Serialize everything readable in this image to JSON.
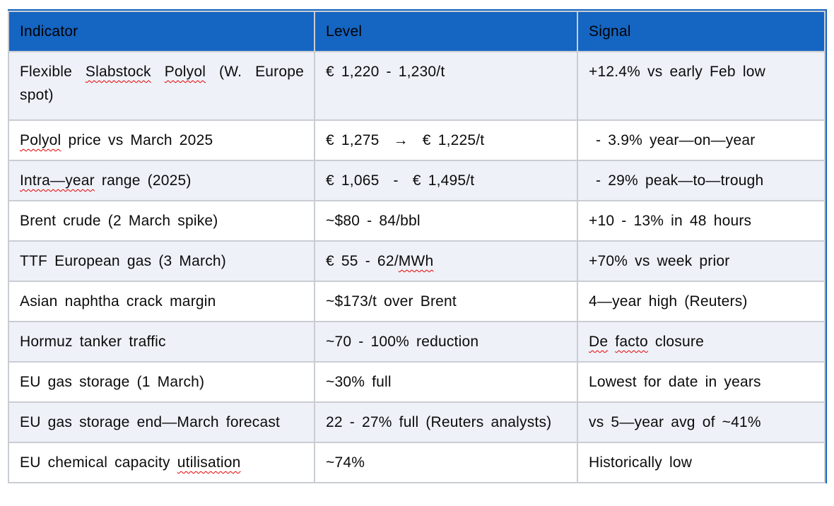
{
  "colors": {
    "header_bg": "#1565C2",
    "banded_row_bg": "#EEF1F8",
    "plain_row_bg": "#FFFFFF",
    "grid_border": "#C9CDD3",
    "header_text": "#000000",
    "body_text": "#0B0B0B",
    "spellcheck_squiggle": "#E60000"
  },
  "table": {
    "columns": [
      {
        "label": "Indicator"
      },
      {
        "label": "Level"
      },
      {
        "label": "Signal"
      }
    ],
    "rows": [
      {
        "indicator": {
          "text": "Flexible Slabstock Polyol (W. Europe spot)",
          "misspelled": [
            "Slabstock",
            "Polyol"
          ]
        },
        "level": {
          "text": "€ 1,220 - 1,230/t"
        },
        "signal": {
          "text": "+12.4% vs early Feb low"
        }
      },
      {
        "indicator": {
          "text": "Polyol price vs March 2025",
          "misspelled": [
            "Polyol"
          ]
        },
        "level": {
          "text": "€ 1,275  →  € 1,225/t"
        },
        "signal": {
          "text": " - 3.9% year—on—year"
        }
      },
      {
        "indicator": {
          "text": "Intra—year range (2025)",
          "misspelled": [
            "Intra—year"
          ]
        },
        "level": {
          "text": "€ 1,065  -  € 1,495/t"
        },
        "signal": {
          "text": " - 29% peak—to—trough"
        }
      },
      {
        "indicator": {
          "text": "Brent crude (2 March spike)"
        },
        "level": {
          "text": "~$80 - 84/bbl"
        },
        "signal": {
          "text": "+10 - 13% in 48 hours"
        }
      },
      {
        "indicator": {
          "text": "TTF European gas (3 March)"
        },
        "level": {
          "text": "€ 55 - 62/MWh",
          "misspelled": [
            "MWh"
          ]
        },
        "signal": {
          "text": "+70% vs week prior"
        }
      },
      {
        "indicator": {
          "text": "Asian naphtha crack margin"
        },
        "level": {
          "text": "~$173/t over Brent"
        },
        "signal": {
          "text": "4—year high (Reuters)"
        }
      },
      {
        "indicator": {
          "text": "Hormuz tanker traffic"
        },
        "level": {
          "text": "~70 - 100% reduction"
        },
        "signal": {
          "text": "De facto closure",
          "misspelled": [
            "De",
            "facto"
          ]
        }
      },
      {
        "indicator": {
          "text": "EU gas storage (1 March)"
        },
        "level": {
          "text": "~30% full"
        },
        "signal": {
          "text": "Lowest for date in years"
        }
      },
      {
        "indicator": {
          "text": "EU gas storage end—March forecast"
        },
        "level": {
          "text": "22 - 27% full (Reuters analysts)"
        },
        "signal": {
          "text": "vs 5—year avg of ~41%"
        }
      },
      {
        "indicator": {
          "text": "EU chemical capacity utilisation",
          "misspelled": [
            "utilisation"
          ]
        },
        "level": {
          "text": "~74%"
        },
        "signal": {
          "text": "Historically low"
        }
      }
    ]
  }
}
